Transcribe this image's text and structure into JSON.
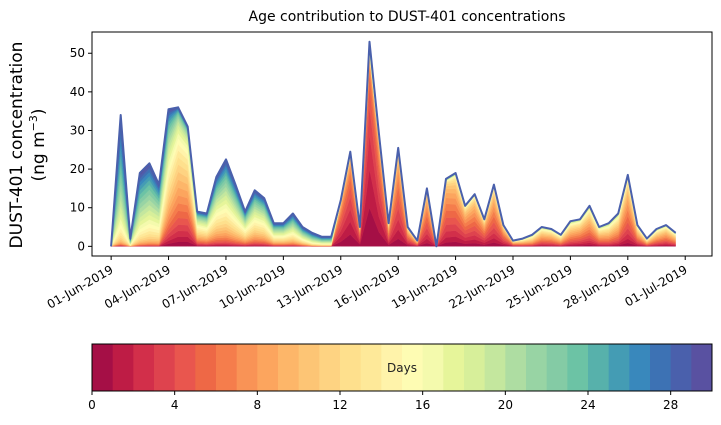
{
  "chart_data": {
    "type": "area",
    "stacked": true,
    "title": "Age contribution to DUST-401 concentrations",
    "ylabel_line1": "DUST-401 concentration",
    "ylabel_line2_prefix": "(ng m",
    "ylabel_line2_sup": "−3",
    "ylabel_line2_suffix": ")",
    "xlabel": "",
    "ylim": [
      -2.5,
      55.5
    ],
    "yticks": [
      0,
      10,
      20,
      30,
      40,
      50
    ],
    "xlim_days_from_01_jun": [
      -1.0,
      31.4
    ],
    "xticks": [
      {
        "label": "01-Jun-2019",
        "day": 0
      },
      {
        "label": "04-Jun-2019",
        "day": 3
      },
      {
        "label": "07-Jun-2019",
        "day": 6
      },
      {
        "label": "10-Jun-2019",
        "day": 9
      },
      {
        "label": "13-Jun-2019",
        "day": 12
      },
      {
        "label": "16-Jun-2019",
        "day": 15
      },
      {
        "label": "19-Jun-2019",
        "day": 18
      },
      {
        "label": "22-Jun-2019",
        "day": 21
      },
      {
        "label": "25-Jun-2019",
        "day": 24
      },
      {
        "label": "28-Jun-2019",
        "day": 27
      },
      {
        "label": "01-Jul-2019",
        "day": 30
      }
    ],
    "x_days": [
      0,
      0.5,
      1,
      1.5,
      2,
      2.5,
      3,
      3.5,
      4,
      4.5,
      5,
      5.5,
      6,
      6.5,
      7,
      7.5,
      8,
      8.5,
      9,
      9.5,
      10,
      10.5,
      11,
      11.5,
      12,
      12.5,
      13,
      13.5,
      14,
      14.5,
      15,
      15.5,
      16,
      16.5,
      17,
      17.5,
      18,
      18.5,
      19,
      19.5,
      20,
      20.5,
      21,
      21.5,
      22,
      22.5,
      23,
      23.5,
      24,
      24.5,
      25,
      25.5,
      26,
      26.5,
      27,
      27.5,
      28,
      28.5,
      29,
      29.5
    ],
    "total": [
      0,
      34,
      2,
      19,
      21.5,
      16,
      35.5,
      36,
      31,
      9,
      8.5,
      18,
      22.5,
      16,
      9,
      14.5,
      12.5,
      6,
      6,
      8.5,
      5,
      3.5,
      2.5,
      2.5,
      12,
      24.5,
      5,
      53,
      29,
      6,
      25.5,
      5,
      1.5,
      15,
      0,
      17.5,
      19,
      10.5,
      13.5,
      7,
      16,
      5.5,
      1.5,
      2,
      3,
      5,
      4.5,
      3,
      6.5,
      7,
      10.5,
      5,
      6,
      8.5,
      18.5,
      5.5,
      2,
      4.5,
      5.5,
      3.5
    ],
    "dominant_age_days": [
      25,
      24,
      22,
      22,
      21,
      20,
      14,
      9,
      8,
      14,
      15,
      17,
      18,
      18,
      17,
      17,
      17,
      18,
      18,
      19,
      20,
      22,
      22,
      22,
      3,
      2,
      3,
      1,
      2,
      5,
      4,
      5,
      7,
      5,
      6,
      5,
      5,
      5,
      5,
      5,
      5,
      5,
      7,
      9,
      10,
      8,
      8,
      9,
      8,
      7,
      7,
      8,
      9,
      8,
      6,
      7,
      9,
      8,
      7,
      8
    ],
    "age_spread_days": [
      6,
      7,
      6,
      7,
      7,
      7,
      10,
      8,
      8,
      9,
      9,
      9,
      9,
      9,
      9,
      9,
      9,
      9,
      9,
      9,
      9,
      8,
      8,
      8,
      4,
      4,
      5,
      3,
      4,
      5,
      4,
      5,
      5,
      4,
      5,
      4,
      5,
      5,
      5,
      5,
      5,
      5,
      6,
      6,
      6,
      6,
      6,
      6,
      6,
      6,
      6,
      6,
      6,
      6,
      5,
      6,
      6,
      6,
      6,
      6
    ],
    "colorbar": {
      "label": "Days",
      "cmap": "Spectral",
      "bins": 30,
      "range": [
        0,
        30
      ],
      "ticks": [
        0,
        4,
        8,
        12,
        16,
        20,
        24,
        28
      ],
      "colors": [
        "#a50f46",
        "#be1c45",
        "#d22f4a",
        "#de434e",
        "#e9564e",
        "#ee6846",
        "#f57d4c",
        "#f99356",
        "#fca55e",
        "#fdb669",
        "#fdc575",
        "#fed382",
        "#fee08d",
        "#fee999",
        "#fff3aa",
        "#fefcb3",
        "#f4faad",
        "#e6f59a",
        "#d7ef9a",
        "#c4e79e",
        "#aedda2",
        "#98d4a4",
        "#84cba5",
        "#6cc3a5",
        "#57b1ab",
        "#449cb4",
        "#3988bc",
        "#3d72b4",
        "#4a60ac",
        "#5951a1"
      ]
    }
  }
}
